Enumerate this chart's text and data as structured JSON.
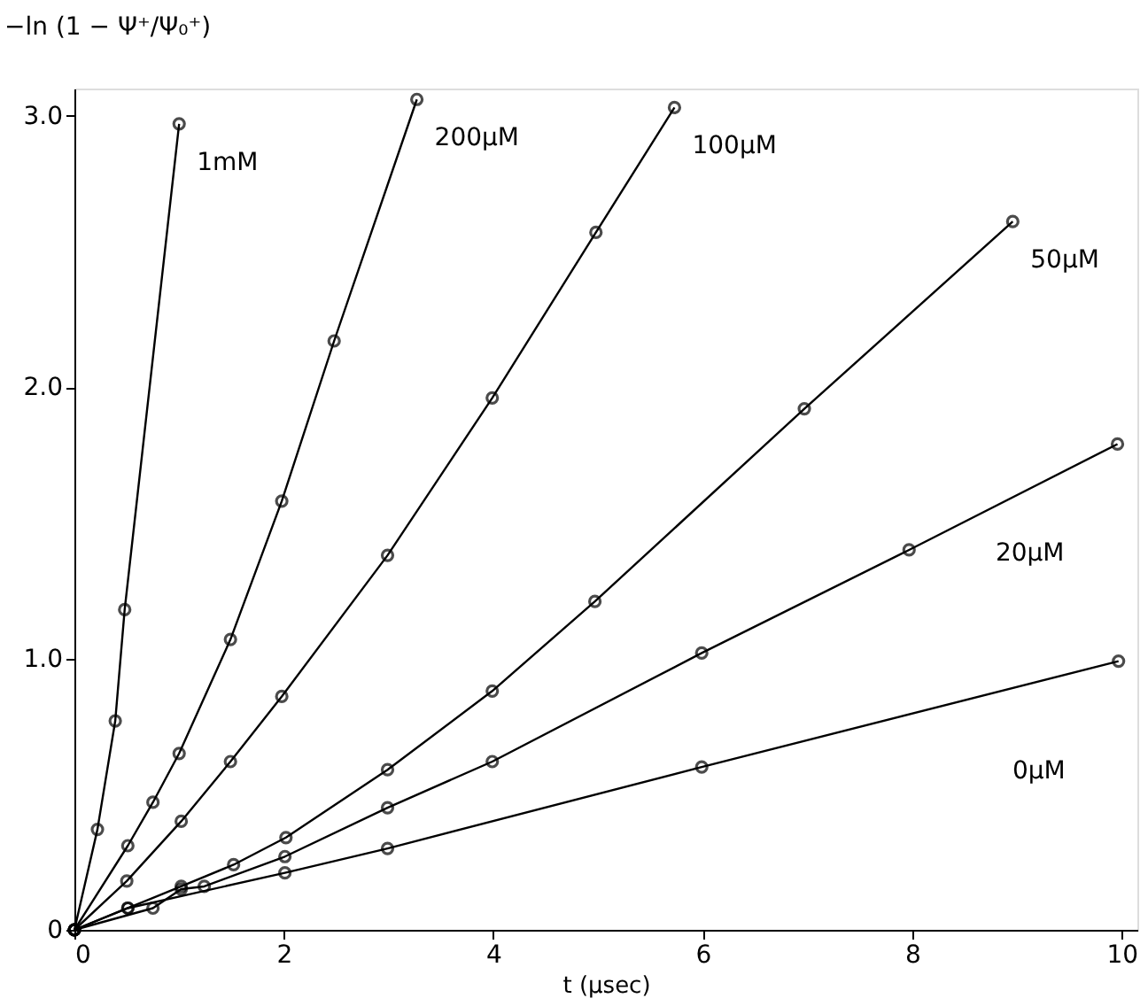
{
  "chart_data": {
    "type": "line",
    "xlabel": "t (μsec)",
    "ylabel": "−ln (1 − Ψ⁺/Ψ₀⁺)",
    "marker": "circle",
    "line_style": "solid",
    "xlim": [
      0,
      10.15
    ],
    "ylim": [
      0,
      3.1
    ],
    "xticks": [
      0,
      2,
      4,
      6,
      8,
      10
    ],
    "yticks": [
      {
        "value": 0,
        "label": "0"
      },
      {
        "value": 1,
        "label": "1.0"
      },
      {
        "value": 2,
        "label": "2.0"
      },
      {
        "value": 3,
        "label": "3.0"
      }
    ],
    "series": [
      {
        "name": "1mM",
        "color": "#000000",
        "x": [
          0,
          0.22,
          0.39,
          0.48,
          1.0
        ],
        "values": [
          0,
          0.37,
          0.77,
          1.18,
          2.97
        ]
      },
      {
        "name": "200μM",
        "color": "#000000",
        "x": [
          0,
          0.51,
          0.75,
          1.0,
          1.49,
          1.98,
          2.48,
          3.27
        ],
        "values": [
          0,
          0.31,
          0.47,
          0.65,
          1.07,
          1.58,
          2.17,
          3.06
        ]
      },
      {
        "name": "100μM",
        "color": "#000000",
        "x": [
          0,
          0.5,
          1.02,
          1.49,
          1.98,
          2.99,
          3.99,
          4.98,
          5.73
        ],
        "values": [
          0,
          0.18,
          0.4,
          0.62,
          0.86,
          1.38,
          1.96,
          2.57,
          3.03
        ]
      },
      {
        "name": "50μM",
        "color": "#000000",
        "x": [
          0,
          0.51,
          1.02,
          1.52,
          2.02,
          2.99,
          3.99,
          4.97,
          6.97,
          8.96
        ],
        "values": [
          0,
          0.08,
          0.16,
          0.24,
          0.34,
          0.59,
          0.88,
          1.21,
          1.92,
          2.61
        ]
      },
      {
        "name": "20μM",
        "color": "#000000",
        "x": [
          0,
          0.75,
          1.02,
          1.24,
          2.01,
          2.99,
          3.99,
          5.99,
          7.97,
          9.96
        ],
        "values": [
          0,
          0.08,
          0.15,
          0.16,
          0.27,
          0.45,
          0.62,
          1.02,
          1.4,
          1.79
        ]
      },
      {
        "name": "0μM",
        "color": "#000000",
        "x": [
          0,
          0.51,
          2.01,
          2.99,
          5.99,
          9.97
        ],
        "values": [
          0,
          0.08,
          0.21,
          0.3,
          0.6,
          0.99
        ]
      }
    ]
  }
}
